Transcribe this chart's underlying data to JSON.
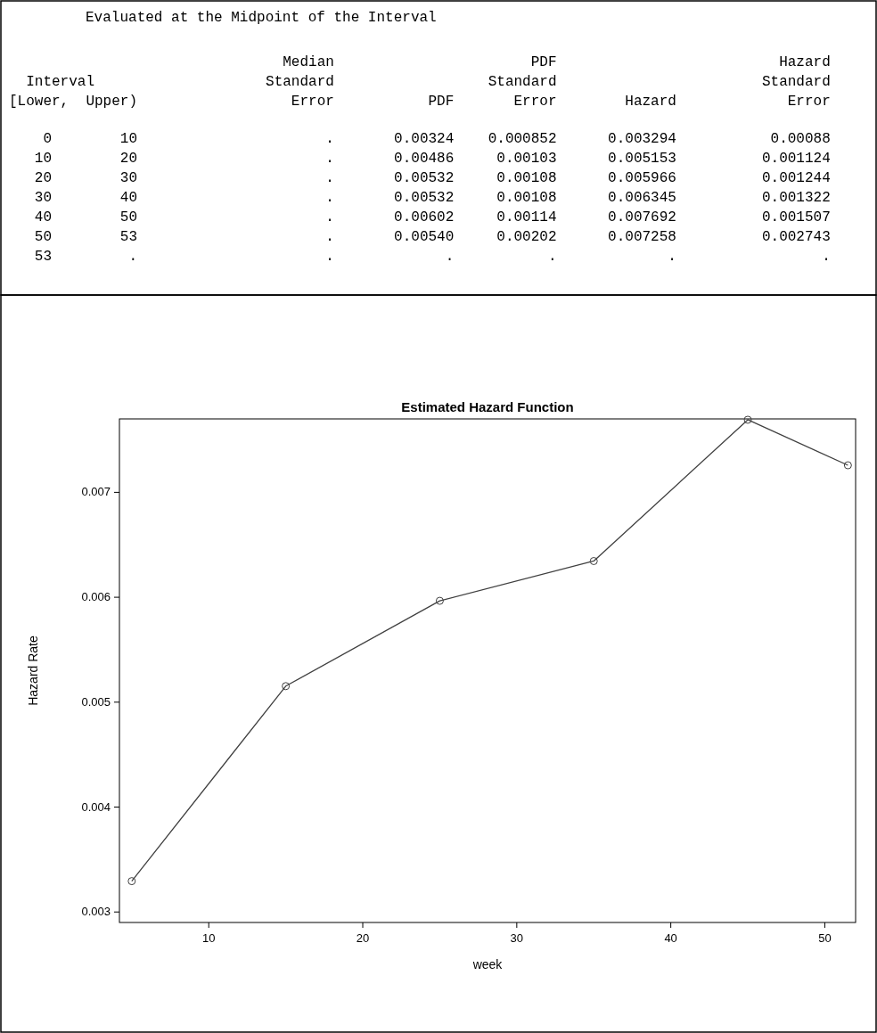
{
  "chart_data": [
    {
      "type": "other",
      "title": "Evaluated at the Midpoint of the Interval",
      "annotations": [
        "                                Median                       PDF                          Hazard",
        "  Interval                    Standard                  Standard                        Standard",
        "[Lower,  Upper)                  Error           PDF       Error        Hazard             Error",
        "    0        10                      .       0.00324    0.000852      0.003294           0.00088",
        "   10        20                      .       0.00486     0.00103      0.005153          0.001124",
        "   20        30                      .       0.00532     0.00108      0.005966          0.001244",
        "   30        40                      .       0.00532     0.00108      0.006345          0.001322",
        "   40        50                      .       0.00602     0.00114      0.007692          0.001507",
        "   50        53                      .       0.00540     0.00202      0.007258          0.002743",
        "   53         .                      .             .           .             .                 ."
      ]
    },
    {
      "type": "line",
      "title": "Estimated Hazard Function",
      "xlabel": "week",
      "ylabel": "Hazard Rate",
      "x": [
        5,
        15,
        25,
        35,
        45,
        51.5
      ],
      "series": [
        {
          "color": "#404040",
          "values": [
            0.003294,
            0.005153,
            0.005966,
            0.006345,
            0.007692,
            0.007258
          ]
        }
      ],
      "xlim": [
        4.2,
        52
      ],
      "xticks": [
        10,
        20,
        30,
        40,
        50
      ],
      "ylim": [
        0.0029,
        0.0077
      ],
      "yticks": [
        0.003,
        0.004,
        0.005,
        0.006,
        0.007
      ],
      "marker": "circle",
      "line_style": "solid"
    }
  ]
}
